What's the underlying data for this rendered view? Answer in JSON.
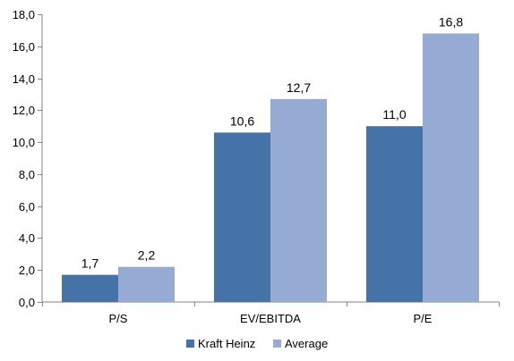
{
  "chart_data": {
    "type": "bar",
    "categories": [
      "P/S",
      "EV/EBITDA",
      "P/E"
    ],
    "series": [
      {
        "name": "Kraft Heinz",
        "values": [
          1.7,
          10.6,
          11.0
        ],
        "labels": [
          "1,7",
          "10,6",
          "11,0"
        ],
        "color": "#4572A7"
      },
      {
        "name": "Average",
        "values": [
          2.2,
          12.7,
          16.8
        ],
        "labels": [
          "2,2",
          "12,7",
          "16,8"
        ],
        "color": "#95ABD4"
      }
    ],
    "ylim": [
      0,
      18
    ],
    "yticks": [
      0,
      2,
      4,
      6,
      8,
      10,
      12,
      14,
      16,
      18
    ],
    "ytick_labels": [
      "0,0",
      "2,0",
      "4,0",
      "6,0",
      "8,0",
      "10,0",
      "12,0",
      "14,0",
      "16,0",
      "18,0"
    ],
    "grid": false,
    "legend_position": "bottom",
    "title": "",
    "xlabel": "",
    "ylabel": ""
  }
}
